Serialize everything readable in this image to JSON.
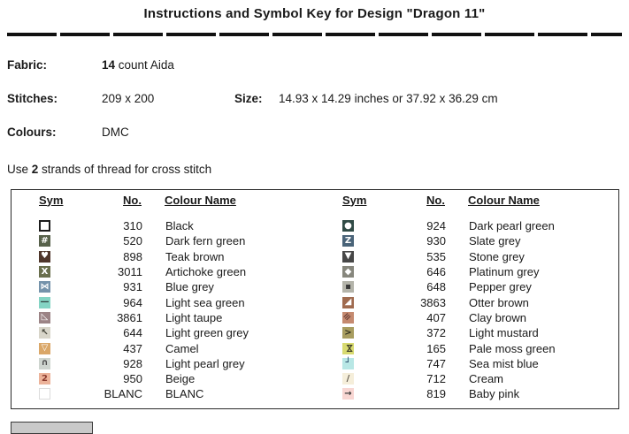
{
  "title": "Instructions and Symbol Key for Design \"Dragon 11\"",
  "info": {
    "fabric_label": "Fabric:",
    "fabric_bold": "14",
    "fabric_rest": " count Aida",
    "stitches_label": "Stitches:",
    "stitches_value": "209 x 200",
    "size_label": "Size:",
    "size_value": "14.93 x 14.29 inches or 37.92 x 36.29 cm",
    "colours_label": "Colours:",
    "colours_value": "DMC",
    "strands_prefix": "Use ",
    "strands_bold": "2",
    "strands_suffix": " strands of thread for cross stitch"
  },
  "key_table": {
    "headers": [
      "Sym",
      "No.",
      "Colour Name"
    ],
    "left_rows": [
      {
        "no": "310",
        "name": "Black",
        "sym": {
          "bg": "#ffffff",
          "border": "#1c1c1c",
          "bw": 2,
          "glyph": "",
          "fg": ""
        }
      },
      {
        "no": "520",
        "name": "Dark fern green",
        "sym": {
          "bg": "#57614a",
          "glyph": "#",
          "fg": "#ffffff"
        }
      },
      {
        "no": "898",
        "name": "Teak brown",
        "sym": {
          "bg": "#4f362b",
          "glyph": "♥",
          "fg": "#ffffff"
        }
      },
      {
        "no": "3011",
        "name": "Artichoke green",
        "sym": {
          "bg": "#6a6f4d",
          "glyph": "X",
          "fg": "#ffffff"
        }
      },
      {
        "no": "931",
        "name": "Blue grey",
        "sym": {
          "bg": "#7593ab",
          "glyph": "⋈",
          "fg": "#ffffff"
        }
      },
      {
        "no": "964",
        "name": "Light sea green",
        "sym": {
          "bg": "#84d4c4",
          "glyph": "—",
          "fg": "#2e3d3a"
        }
      },
      {
        "no": "3861",
        "name": "Light taupe",
        "sym": {
          "bg": "#9c8486",
          "glyph": "◺",
          "fg": "#ffffff"
        }
      },
      {
        "no": "644",
        "name": "Light green grey",
        "sym": {
          "bg": "#d8d5c9",
          "glyph": "↖",
          "fg": "#45453a"
        }
      },
      {
        "no": "437",
        "name": "Camel",
        "sym": {
          "bg": "#daa768",
          "glyph": "▽",
          "fg": "#ffffff"
        }
      },
      {
        "no": "928",
        "name": "Light pearl grey",
        "sym": {
          "bg": "#ced5cf",
          "glyph": "∩",
          "fg": "#4a4a4a"
        }
      },
      {
        "no": "950",
        "name": "Beige",
        "sym": {
          "bg": "#ecb39a",
          "glyph": "2",
          "fg": "#8a3a2e"
        }
      },
      {
        "no": "BLANC",
        "name": "BLANC",
        "sym": {
          "bg": "#ffffff",
          "border": "#dcdcdc",
          "bw": 1,
          "glyph": "",
          "fg": ""
        }
      }
    ],
    "right_rows": [
      {
        "no": "924",
        "name": "Dark pearl green",
        "sym": {
          "bg": "#314b46",
          "glyph": "●",
          "fg": "#ffffff"
        }
      },
      {
        "no": "930",
        "name": "Slate grey",
        "sym": {
          "bg": "#4a6479",
          "glyph": "Z",
          "fg": "#ffffff"
        }
      },
      {
        "no": "535",
        "name": "Stone grey",
        "sym": {
          "bg": "#474747",
          "glyph": "▼",
          "fg": "#ffffff"
        }
      },
      {
        "no": "646",
        "name": "Platinum grey",
        "sym": {
          "bg": "#87877d",
          "glyph": "◆",
          "fg": "#ffffff"
        }
      },
      {
        "no": "648",
        "name": "Pepper grey",
        "sym": {
          "bg": "#b4b4aa",
          "glyph": "▪",
          "fg": "#383838"
        }
      },
      {
        "no": "3863",
        "name": "Otter brown",
        "sym": {
          "bg": "#a06b4f",
          "glyph": "◢",
          "fg": "#ffffff"
        }
      },
      {
        "no": "407",
        "name": "Clay brown",
        "sym": {
          "bg": "#c58a70",
          "glyph": "≡",
          "fg": "#6b4038",
          "rot": -45
        }
      },
      {
        "no": "372",
        "name": "Light mustard",
        "sym": {
          "bg": "#a89d60",
          "glyph": ">",
          "fg": "#2f2f1f"
        }
      },
      {
        "no": "165",
        "name": "Pale moss green",
        "sym": {
          "bg": "#d8da70",
          "glyph": "⋈",
          "fg": "#3c3c28",
          "rot": 90
        }
      },
      {
        "no": "747",
        "name": "Sea mist blue",
        "sym": {
          "bg": "#b8e7e5",
          "glyph": "┘",
          "fg": "#1f3f63"
        }
      },
      {
        "no": "712",
        "name": "Cream",
        "sym": {
          "bg": "#f5eeda",
          "glyph": "/",
          "fg": "#5a5246"
        }
      },
      {
        "no": "819",
        "name": "Baby pink",
        "sym": {
          "bg": "#f8d6d2",
          "glyph": "→",
          "fg": "#3c3c3c"
        }
      }
    ]
  }
}
